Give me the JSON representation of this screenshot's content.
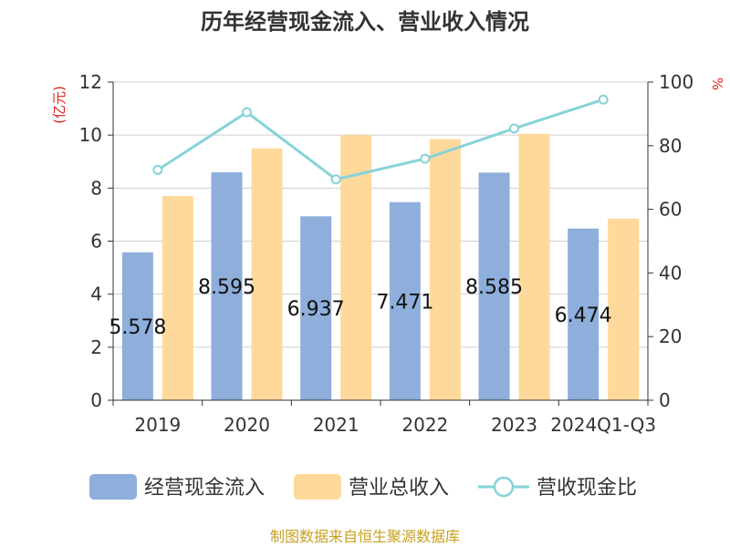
{
  "chart_data": {
    "type": "bar",
    "title": "历年经营现金流入、营业收入情况",
    "categories": [
      "2019",
      "2020",
      "2021",
      "2022",
      "2023",
      "2024Q1-Q3"
    ],
    "left_unit": "(亿元)",
    "right_unit": "%",
    "ylim_left": [
      0,
      12
    ],
    "left_ticks": [
      0,
      2,
      4,
      6,
      8,
      10,
      12
    ],
    "ylim_right": [
      0,
      100
    ],
    "right_ticks": [
      0,
      20,
      40,
      60,
      80,
      100
    ],
    "series": [
      {
        "name": "经营现金流入",
        "kind": "bar",
        "axis": "left",
        "color": "#8eaedb",
        "values": [
          5.578,
          8.595,
          6.937,
          7.471,
          8.585,
          6.474
        ],
        "show_labels": true
      },
      {
        "name": "营业总收入",
        "kind": "bar",
        "axis": "left",
        "color": "#ffd99b",
        "values": [
          7.7,
          9.5,
          10.0,
          9.85,
          10.05,
          6.85
        ],
        "show_labels": false
      },
      {
        "name": "营收现金比",
        "kind": "line",
        "axis": "right",
        "color": "#86d3d8",
        "values": [
          72.4,
          90.5,
          69.4,
          75.9,
          85.4,
          94.5
        ],
        "show_labels": false
      }
    ],
    "grid": true,
    "legend_position": "bottom"
  },
  "source_text": "制图数据来自恒生聚源数据库"
}
